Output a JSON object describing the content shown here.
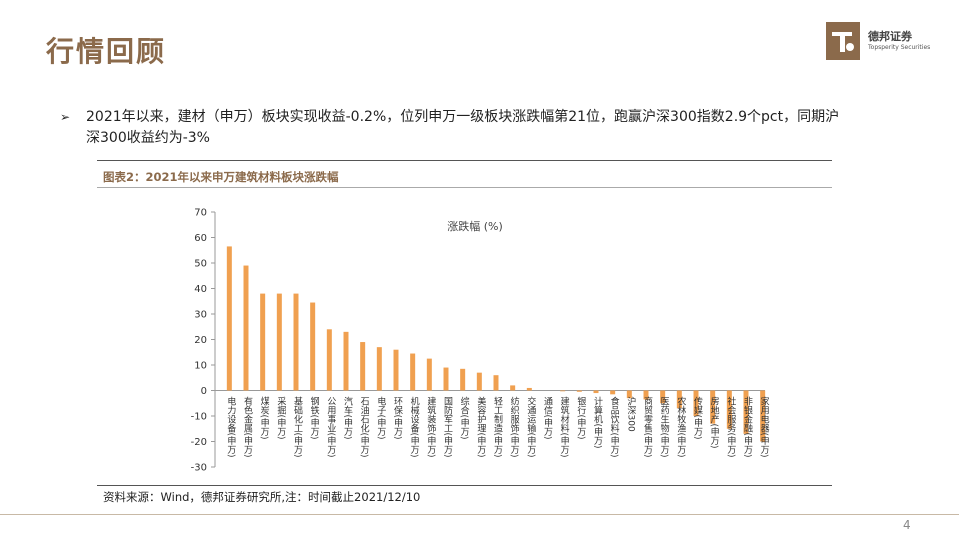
{
  "header": {
    "title": "行情回顾",
    "logo_cn": "德邦证券",
    "logo_en": "Topsperity Securities"
  },
  "bullet": {
    "text": "2021年以来，建材（申万）板块实现收益-0.2%，位列申万一级板块涨跌幅第21位，跑赢沪深300指数2.9个pct，同期沪深300收益约为-3%"
  },
  "figure": {
    "caption": "图表2：2021年以来申万建筑材料板块涨跌幅",
    "source": "资料来源：Wind，德邦证券研究所,注：时间截止2021/12/10"
  },
  "footer": {
    "page": "4"
  },
  "colors": {
    "accent": "#8b6a4b",
    "bar": "#f0a050"
  },
  "chart_data": {
    "type": "bar",
    "title": "涨跌幅 (%)",
    "ylim": [
      -30,
      70
    ],
    "yticks": [
      70,
      60,
      50,
      40,
      30,
      20,
      10,
      0,
      -10,
      -20,
      -30
    ],
    "grid": false,
    "legend": "none",
    "categories": [
      "电力设备(申万)",
      "有色金属(申万)",
      "煤炭(申万)",
      "采掘(申万)",
      "基础化工(申万)",
      "钢铁(申万)",
      "公用事业(申万)",
      "汽车(申万)",
      "石油石化(申万)",
      "电子(申万)",
      "环保(申万)",
      "机械设备(申万)",
      "建筑装饰(申万)",
      "国防军工(申万)",
      "综合(申万)",
      "美容护理(申万)",
      "轻工制造(申万)",
      "纺织服饰(申万)",
      "交通运输(申万)",
      "通信(申万)",
      "建筑材料(申万)",
      "银行(申万)",
      "计算机(申万)",
      "食品饮料(申万)",
      "沪深300",
      "商贸零售(申万)",
      "医药生物(申万)",
      "农林牧渔(申万)",
      "传媒(申万)",
      "房地产(申万)",
      "社会服务(申万)",
      "非银金融(申万)",
      "家用电器(申万)"
    ],
    "values": [
      56.5,
      49,
      38,
      38,
      38,
      34.5,
      24,
      23,
      19,
      17,
      16,
      14.5,
      12.5,
      9,
      8.5,
      7,
      6,
      2,
      1,
      0,
      -0.2,
      -0.5,
      -1,
      -1.5,
      -3,
      -3.5,
      -5,
      -7,
      -10,
      -13,
      -15,
      -17,
      -20
    ]
  }
}
